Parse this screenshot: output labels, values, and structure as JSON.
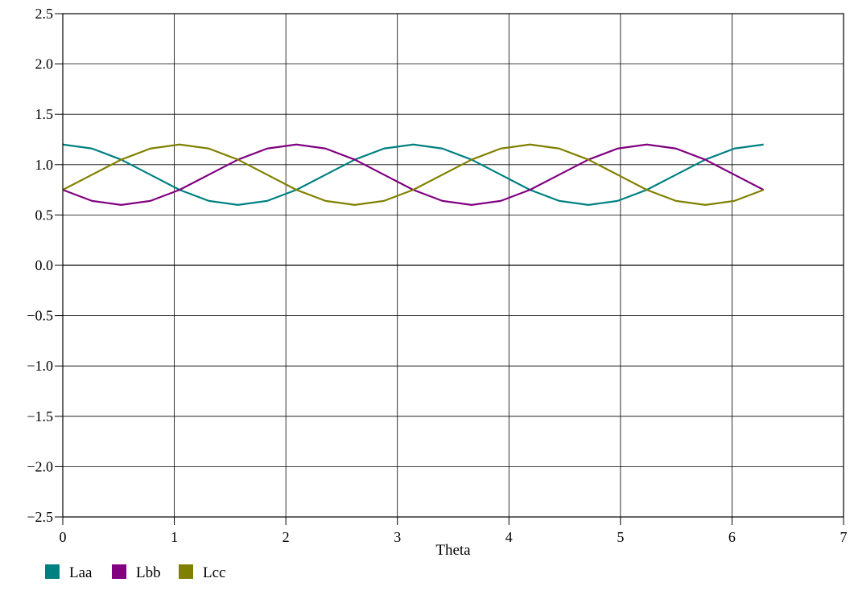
{
  "chart_data": {
    "type": "line",
    "title": "",
    "xlabel": "Theta",
    "ylabel": "",
    "xlim": [
      0,
      7
    ],
    "ylim": [
      -2.5,
      2.5
    ],
    "x_ticks": [
      0,
      1,
      2,
      3,
      4,
      5,
      6,
      7
    ],
    "x_tick_labels": [
      "0",
      "1",
      "2",
      "3",
      "4",
      "5",
      "6",
      "7"
    ],
    "y_ticks": [
      -2.5,
      -2.0,
      -1.5,
      -1.0,
      -0.5,
      0.0,
      0.5,
      1.0,
      1.5,
      2.0,
      2.5
    ],
    "y_tick_labels": [
      "−2.5",
      "−2.0",
      "−1.5",
      "−1.0",
      "−0.5",
      "0.0",
      "0.5",
      "1.0",
      "1.5",
      "2.0",
      "2.5"
    ],
    "grid": true,
    "legend_position": "bottom-left",
    "x": [
      0,
      0.2618,
      0.5236,
      0.7854,
      1.0472,
      1.309,
      1.5708,
      1.8326,
      2.0944,
      2.3562,
      2.618,
      2.8798,
      3.1416,
      3.4034,
      3.6652,
      3.927,
      4.1888,
      4.4506,
      4.7124,
      4.9742,
      5.236,
      5.4978,
      5.7596,
      6.0214,
      6.2832
    ],
    "series": [
      {
        "name": "Laa",
        "color": "#008080",
        "values": [
          1.2,
          1.16,
          1.05,
          0.9,
          0.75,
          0.64,
          0.6,
          0.64,
          0.75,
          0.9,
          1.05,
          1.16,
          1.2,
          1.16,
          1.05,
          0.9,
          0.75,
          0.64,
          0.6,
          0.64,
          0.75,
          0.9,
          1.05,
          1.16,
          1.2
        ]
      },
      {
        "name": "Lbb",
        "color": "#800080",
        "values": [
          0.75,
          0.64,
          0.6,
          0.64,
          0.75,
          0.9,
          1.05,
          1.16,
          1.2,
          1.16,
          1.05,
          0.9,
          0.75,
          0.64,
          0.6,
          0.64,
          0.75,
          0.9,
          1.05,
          1.16,
          1.2,
          1.16,
          1.05,
          0.9,
          0.75
        ]
      },
      {
        "name": "Lcc",
        "color": "#808000",
        "values": [
          0.75,
          0.9,
          1.05,
          1.16,
          1.2,
          1.16,
          1.05,
          0.9,
          0.75,
          0.64,
          0.6,
          0.64,
          0.75,
          0.9,
          1.05,
          1.16,
          1.2,
          1.16,
          1.05,
          0.9,
          0.75,
          0.64,
          0.6,
          0.64,
          0.75
        ]
      }
    ]
  }
}
